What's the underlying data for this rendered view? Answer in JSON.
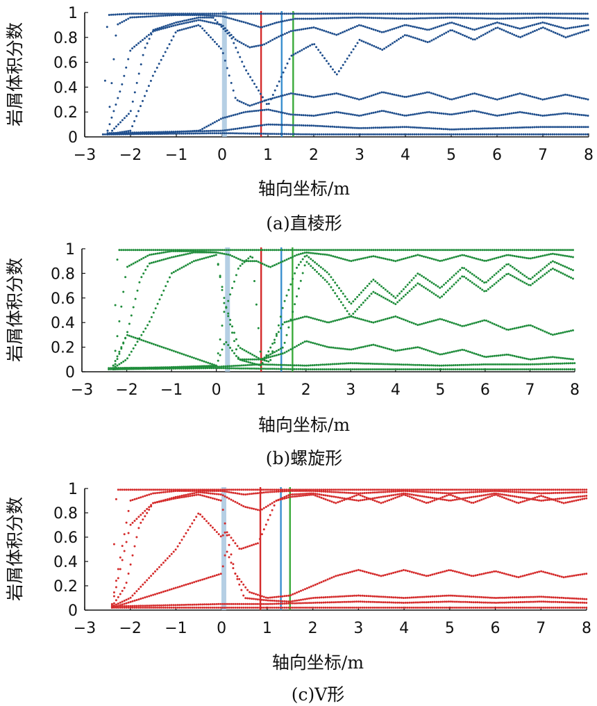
{
  "chart_data": [
    {
      "type": "scatter",
      "caption": "(a)直棱形",
      "xlabel": "轴向坐标/m",
      "ylabel": "岩屑体积分数",
      "xlim": [
        -3,
        8
      ],
      "ylim": [
        0,
        1
      ],
      "xticks": [
        "−3",
        "−2",
        "−1",
        "0",
        "1",
        "2",
        "3",
        "4",
        "5",
        "6",
        "7",
        "8"
      ],
      "yticks": [
        "0",
        "0.2",
        "0.4",
        "0.6",
        "0.8",
        "1"
      ],
      "color": "#1f4e8c",
      "marker_lines": [
        {
          "x": 0.05,
          "color": "#a9c7e0"
        },
        {
          "x": 0.85,
          "color": "#d42a2a"
        },
        {
          "x": 1.3,
          "color": "#3a8fcf"
        },
        {
          "x": 1.55,
          "color": "#3aaa3a"
        }
      ],
      "series": [
        {
          "x": [
            -2.6,
            -2.55,
            -2.5,
            -2.0,
            -1.0,
            0.0,
            0.5,
            1.0,
            2.0,
            4.0,
            6.0,
            8.0
          ],
          "y": [
            0.02,
            0.5,
            0.98,
            0.99,
            0.99,
            0.99,
            0.99,
            0.99,
            0.99,
            0.99,
            0.99,
            0.99
          ]
        },
        {
          "x": [
            -2.5,
            -2.3,
            -2.0,
            -1.5,
            -1.0,
            -0.5,
            0.0,
            0.5,
            0.85,
            1.2,
            1.6,
            2.0,
            3.0,
            4.0,
            5.0,
            6.0,
            7.0,
            8.0
          ],
          "y": [
            0.05,
            0.9,
            0.96,
            0.97,
            0.98,
            0.98,
            0.97,
            0.92,
            0.88,
            0.92,
            0.95,
            0.95,
            0.96,
            0.95,
            0.96,
            0.95,
            0.96,
            0.95
          ]
        },
        {
          "x": [
            -2.5,
            -2.2,
            -2.0,
            -1.5,
            -1.0,
            -0.5,
            0.0,
            0.3,
            0.6,
            0.9,
            1.2,
            1.5,
            2.0,
            2.5,
            3.0,
            3.5,
            4.0,
            4.5,
            5.0,
            5.5,
            6.0,
            6.5,
            7.0,
            7.5,
            8.0
          ],
          "y": [
            0.05,
            0.4,
            0.7,
            0.85,
            0.9,
            0.94,
            0.9,
            0.78,
            0.72,
            0.74,
            0.8,
            0.85,
            0.88,
            0.82,
            0.9,
            0.84,
            0.9,
            0.86,
            0.92,
            0.86,
            0.92,
            0.87,
            0.92,
            0.87,
            0.9
          ]
        },
        {
          "x": [
            -2.4,
            -2.0,
            -1.7,
            -1.5,
            -1.0,
            -0.5,
            -0.2,
            0.2,
            0.5,
            1.0,
            1.5,
            2.0,
            2.5,
            3.0,
            3.5,
            4.0,
            4.5,
            5.0,
            5.5,
            6.0,
            6.5,
            7.0,
            7.5,
            8.0
          ],
          "y": [
            0.05,
            0.2,
            0.7,
            0.86,
            0.92,
            0.96,
            0.96,
            0.8,
            0.55,
            0.25,
            0.65,
            0.75,
            0.5,
            0.78,
            0.7,
            0.82,
            0.76,
            0.86,
            0.78,
            0.88,
            0.8,
            0.88,
            0.8,
            0.86
          ]
        },
        {
          "x": [
            -2.5,
            -2.0,
            -1.5,
            -1.0,
            -0.5,
            0.0,
            0.3,
            0.6,
            1.0,
            1.5,
            2.0,
            2.5,
            3.0,
            3.5,
            4.0,
            4.5,
            5.0,
            5.5,
            6.0,
            6.5,
            7.0,
            7.5,
            8.0
          ],
          "y": [
            0.02,
            0.05,
            0.5,
            0.85,
            0.9,
            0.7,
            0.3,
            0.25,
            0.3,
            0.35,
            0.32,
            0.35,
            0.3,
            0.36,
            0.32,
            0.36,
            0.3,
            0.35,
            0.3,
            0.35,
            0.3,
            0.34,
            0.3
          ]
        },
        {
          "x": [
            -2.5,
            -1.5,
            -0.5,
            0.0,
            0.5,
            1.0,
            1.5,
            2.0,
            2.5,
            3.0,
            3.5,
            4.0,
            4.5,
            5.0,
            5.5,
            6.0,
            6.5,
            7.0,
            7.5,
            8.0
          ],
          "y": [
            0.02,
            0.03,
            0.05,
            0.15,
            0.2,
            0.22,
            0.18,
            0.17,
            0.2,
            0.17,
            0.21,
            0.17,
            0.2,
            0.18,
            0.21,
            0.17,
            0.2,
            0.17,
            0.19,
            0.17
          ]
        },
        {
          "x": [
            -2.5,
            0.0,
            1.0,
            2.0,
            3.0,
            4.0,
            5.0,
            6.0,
            7.0,
            8.0
          ],
          "y": [
            0.03,
            0.05,
            0.1,
            0.09,
            0.07,
            0.08,
            0.06,
            0.07,
            0.08,
            0.08
          ]
        },
        {
          "x": [
            -2.6,
            0.0,
            2.0,
            4.0,
            6.0,
            8.0
          ],
          "y": [
            0.02,
            0.03,
            0.02,
            0.02,
            0.02,
            0.02
          ]
        }
      ]
    },
    {
      "type": "scatter",
      "caption": "(b)螺旋形",
      "xlabel": "轴向坐标/m",
      "ylabel": "岩屑体积分数",
      "xlim": [
        -3,
        8
      ],
      "ylim": [
        0,
        1
      ],
      "xticks": [
        "−3",
        "−2",
        "−1",
        "0",
        "1",
        "2",
        "3",
        "4",
        "5",
        "6",
        "7",
        "8"
      ],
      "yticks": [
        "0",
        "0.2",
        "0.4",
        "0.6",
        "0.8",
        "1"
      ],
      "color": "#1e8c3a",
      "marker_lines": [
        {
          "x": 0.25,
          "color": "#a9c7e0"
        },
        {
          "x": 1.0,
          "color": "#d42a2a"
        },
        {
          "x": 1.45,
          "color": "#3a8fcf"
        },
        {
          "x": 1.7,
          "color": "#3aaa3a"
        }
      ],
      "series": [
        {
          "x": [
            -2.3,
            -2.25,
            -2.2,
            -1.5,
            -0.5,
            0.0,
            0.3,
            0.6,
            1.0,
            1.5,
            1.7,
            1.75,
            2.0,
            3.0,
            4.0,
            5.0,
            6.0,
            7.0,
            8.0
          ],
          "y": [
            0.02,
            0.6,
            0.99,
            0.99,
            0.99,
            0.99,
            0.99,
            0.99,
            0.99,
            0.99,
            0.99,
            0.99,
            0.99,
            0.99,
            0.99,
            0.99,
            0.99,
            0.99,
            0.99
          ]
        },
        {
          "x": [
            -2.3,
            -2.0,
            -1.5,
            -1.0,
            -0.5,
            0.0,
            0.3,
            0.6,
            0.9,
            1.2,
            1.5,
            1.8,
            2.0,
            2.5,
            3.0,
            3.5,
            4.0,
            4.5,
            5.0,
            5.5,
            6.0,
            6.5,
            7.0,
            7.5,
            8.0
          ],
          "y": [
            0.05,
            0.85,
            0.95,
            0.98,
            0.98,
            0.97,
            0.95,
            0.9,
            0.9,
            0.85,
            0.9,
            0.95,
            0.97,
            0.95,
            0.9,
            0.94,
            0.9,
            0.95,
            0.9,
            0.95,
            0.9,
            0.95,
            0.92,
            0.96,
            0.93
          ]
        },
        {
          "x": [
            -2.3,
            -2.0,
            -1.7,
            -1.5,
            -1.0,
            -0.5,
            0.0,
            0.2,
            0.5,
            0.8,
            1.0,
            1.2,
            1.5,
            1.8,
            2.0,
            2.5,
            3.0,
            3.5,
            4.0,
            4.5,
            5.0,
            5.5,
            6.0,
            6.5,
            7.0,
            7.5,
            8.0
          ],
          "y": [
            0.05,
            0.3,
            0.75,
            0.88,
            0.93,
            0.97,
            0.97,
            0.5,
            0.85,
            0.95,
            0.1,
            0.08,
            0.55,
            0.85,
            0.95,
            0.8,
            0.55,
            0.75,
            0.6,
            0.8,
            0.68,
            0.85,
            0.72,
            0.88,
            0.75,
            0.9,
            0.82
          ]
        },
        {
          "x": [
            -2.3,
            -2.0,
            -1.5,
            -1.0,
            -0.5,
            0.0,
            0.2,
            0.5,
            1.0,
            1.5,
            2.0,
            2.5,
            3.0,
            3.5,
            4.0,
            4.5,
            5.0,
            5.5,
            6.0,
            6.5,
            7.0,
            7.5,
            8.0
          ],
          "y": [
            0.03,
            0.1,
            0.4,
            0.8,
            0.9,
            0.95,
            0.55,
            0.2,
            0.1,
            0.2,
            0.9,
            0.72,
            0.45,
            0.65,
            0.55,
            0.72,
            0.6,
            0.78,
            0.65,
            0.8,
            0.7,
            0.84,
            0.75
          ]
        },
        {
          "x": [
            -2.3,
            -2.0,
            0.0,
            0.2,
            0.5,
            1.0,
            1.5,
            2.0,
            2.5,
            3.0,
            3.5,
            4.0,
            4.5,
            5.0,
            5.5,
            6.0,
            6.5,
            7.0,
            7.5,
            8.0
          ],
          "y": [
            0.02,
            0.3,
            0.05,
            0.55,
            0.1,
            0.05,
            0.4,
            0.45,
            0.4,
            0.45,
            0.4,
            0.45,
            0.38,
            0.43,
            0.37,
            0.42,
            0.34,
            0.38,
            0.3,
            0.34
          ]
        },
        {
          "x": [
            -2.3,
            0.0,
            0.2,
            0.5,
            1.0,
            1.5,
            2.0,
            2.5,
            3.0,
            3.5,
            4.0,
            4.5,
            5.0,
            5.5,
            6.0,
            6.5,
            7.0,
            7.5,
            8.0
          ],
          "y": [
            0.02,
            0.05,
            0.25,
            0.1,
            0.1,
            0.15,
            0.25,
            0.2,
            0.18,
            0.22,
            0.17,
            0.2,
            0.14,
            0.18,
            0.12,
            0.14,
            0.1,
            0.12,
            0.1
          ]
        },
        {
          "x": [
            -2.4,
            0.0,
            1.0,
            2.0,
            3.0,
            4.0,
            5.0,
            6.0,
            7.0,
            8.0
          ],
          "y": [
            0.03,
            0.04,
            0.06,
            0.05,
            0.07,
            0.06,
            0.05,
            0.06,
            0.06,
            0.07
          ]
        },
        {
          "x": [
            -2.4,
            0.0,
            2.0,
            4.0,
            6.0,
            8.0
          ],
          "y": [
            0.02,
            0.03,
            0.02,
            0.02,
            0.02,
            0.02
          ]
        }
      ]
    },
    {
      "type": "scatter",
      "caption": "(c)V形",
      "xlabel": "轴向坐标/m",
      "ylabel": "岩屑体积分数",
      "xlim": [
        -3,
        8
      ],
      "ylim": [
        0,
        1
      ],
      "xticks": [
        "−3",
        "−2",
        "−1",
        "0",
        "1",
        "2",
        "3",
        "4",
        "5",
        "6",
        "7",
        "8"
      ],
      "yticks": [
        "0",
        "0.2",
        "0.4",
        "0.6",
        "0.8",
        "1"
      ],
      "color": "#d42a2a",
      "marker_lines": [
        {
          "x": 0.05,
          "color": "#a9c7e0"
        },
        {
          "x": 0.85,
          "color": "#d42a2a"
        },
        {
          "x": 1.3,
          "color": "#3a8fcf"
        },
        {
          "x": 1.5,
          "color": "#3aaa3a"
        }
      ],
      "series": [
        {
          "x": [
            -2.4,
            -2.35,
            -2.3,
            -1.5,
            -0.5,
            0.0,
            0.5,
            0.85,
            0.9,
            1.5,
            2.0,
            3.0,
            4.0,
            5.0,
            6.0,
            7.0,
            8.0
          ],
          "y": [
            0.02,
            0.6,
            0.99,
            0.99,
            0.99,
            0.99,
            0.99,
            0.99,
            0.99,
            0.99,
            0.99,
            0.99,
            0.99,
            0.99,
            0.99,
            0.99,
            0.99
          ]
        },
        {
          "x": [
            -2.4,
            -2.0,
            -1.5,
            -1.0,
            -0.5,
            0.0,
            0.5,
            1.0,
            1.5,
            2.0,
            3.0,
            4.0,
            5.0,
            6.0,
            7.0,
            8.0
          ],
          "y": [
            0.05,
            0.9,
            0.96,
            0.98,
            0.98,
            0.98,
            0.95,
            0.97,
            0.98,
            0.98,
            0.96,
            0.98,
            0.96,
            0.98,
            0.96,
            0.97
          ]
        },
        {
          "x": [
            -2.4,
            -2.0,
            -1.5,
            -1.0,
            -0.5,
            0.0,
            0.5,
            0.85,
            1.2,
            1.5,
            2.0,
            2.5,
            3.0,
            3.5,
            4.0,
            4.5,
            5.0,
            5.5,
            6.0,
            6.5,
            7.0,
            7.5,
            8.0
          ],
          "y": [
            0.04,
            0.7,
            0.88,
            0.93,
            0.97,
            0.95,
            0.85,
            0.82,
            0.9,
            0.93,
            0.95,
            0.88,
            0.95,
            0.88,
            0.95,
            0.88,
            0.95,
            0.88,
            0.95,
            0.88,
            0.94,
            0.88,
            0.92
          ]
        },
        {
          "x": [
            -2.4,
            -2.1,
            -1.8,
            -1.5,
            -1.0,
            -0.5,
            0.0,
            0.1,
            0.4,
            0.8,
            1.2,
            1.5,
            2.0,
            3.0,
            4.0,
            5.0,
            6.0,
            7.0,
            8.0
          ],
          "y": [
            0.03,
            0.2,
            0.7,
            0.88,
            0.92,
            0.95,
            0.9,
            0.65,
            0.5,
            0.55,
            0.9,
            0.95,
            0.96,
            0.9,
            0.96,
            0.9,
            0.96,
            0.9,
            0.94
          ]
        },
        {
          "x": [
            -2.4,
            -2.0,
            -1.0,
            -0.5,
            0.0,
            0.1,
            0.3,
            0.6,
            1.0,
            1.5,
            2.0,
            2.5,
            3.0,
            3.5,
            4.0,
            4.5,
            5.0,
            5.5,
            6.0,
            6.5,
            7.0,
            7.5,
            8.0
          ],
          "y": [
            0.03,
            0.1,
            0.5,
            0.8,
            0.6,
            0.65,
            0.3,
            0.15,
            0.1,
            0.12,
            0.2,
            0.28,
            0.33,
            0.28,
            0.33,
            0.28,
            0.33,
            0.28,
            0.32,
            0.27,
            0.32,
            0.27,
            0.3
          ]
        },
        {
          "x": [
            -2.4,
            0.0,
            0.1,
            0.5,
            1.0,
            1.5,
            2.0,
            3.0,
            4.0,
            5.0,
            6.0,
            7.0,
            8.0
          ],
          "y": [
            0.02,
            0.3,
            0.5,
            0.1,
            0.08,
            0.07,
            0.1,
            0.12,
            0.1,
            0.12,
            0.1,
            0.11,
            0.09
          ]
        },
        {
          "x": [
            -2.4,
            0.0,
            1.0,
            2.0,
            3.0,
            4.0,
            5.0,
            6.0,
            7.0,
            8.0
          ],
          "y": [
            0.03,
            0.05,
            0.05,
            0.06,
            0.07,
            0.06,
            0.07,
            0.06,
            0.07,
            0.06
          ]
        },
        {
          "x": [
            -2.4,
            0.0,
            2.0,
            4.0,
            6.0,
            8.0
          ],
          "y": [
            0.02,
            0.02,
            0.02,
            0.02,
            0.02,
            0.02
          ]
        }
      ]
    }
  ]
}
